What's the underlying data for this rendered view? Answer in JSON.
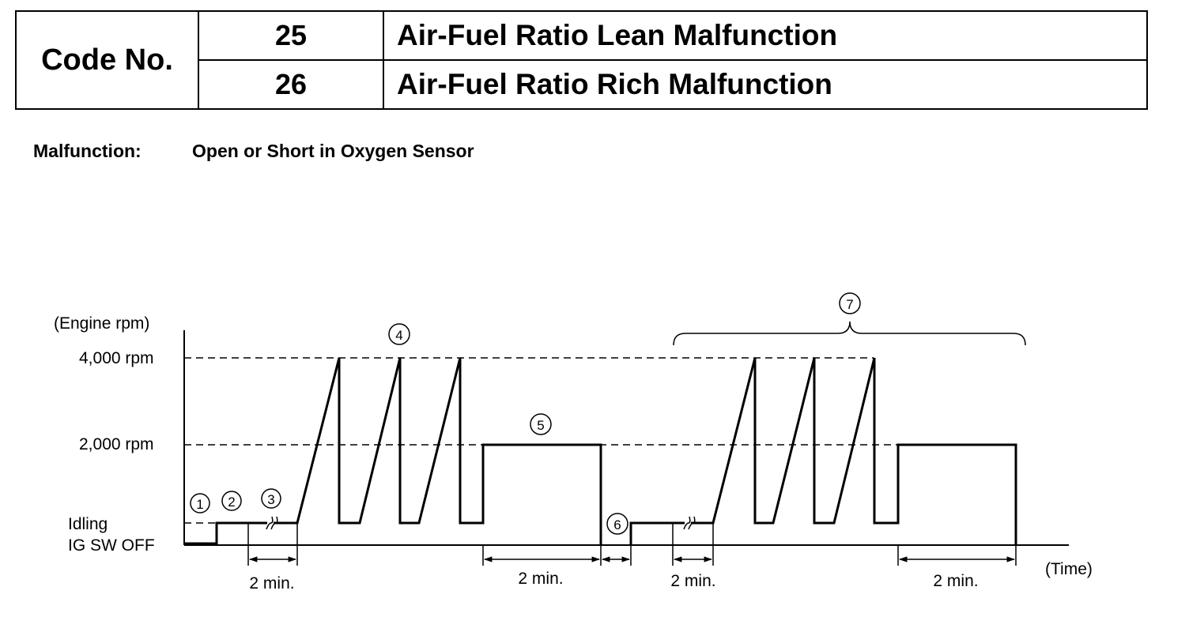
{
  "header": {
    "code_label": "Code No.",
    "rows": [
      {
        "code": "25",
        "title": "Air-Fuel Ratio Lean Malfunction"
      },
      {
        "code": "26",
        "title": "Air-Fuel Ratio Rich Malfunction"
      }
    ]
  },
  "malfunction": {
    "label": "Malfunction:",
    "text": "Open or Short in Oxygen Sensor"
  },
  "diagram": {
    "y_axis_title": "(Engine rpm)",
    "x_axis_title": "(Time)",
    "levels": {
      "rpm_4000": "4,000 rpm",
      "rpm_2000": "2,000 rpm",
      "idling": "Idling",
      "ig_sw_off": "IG SW OFF"
    },
    "steps": [
      "1",
      "2",
      "3",
      "4",
      "5",
      "6",
      "7"
    ],
    "durations": [
      "2 min.",
      "2 min.",
      "2 min.",
      "2 min."
    ],
    "colors": {
      "ink": "#000000",
      "background": "#ffffff"
    }
  }
}
